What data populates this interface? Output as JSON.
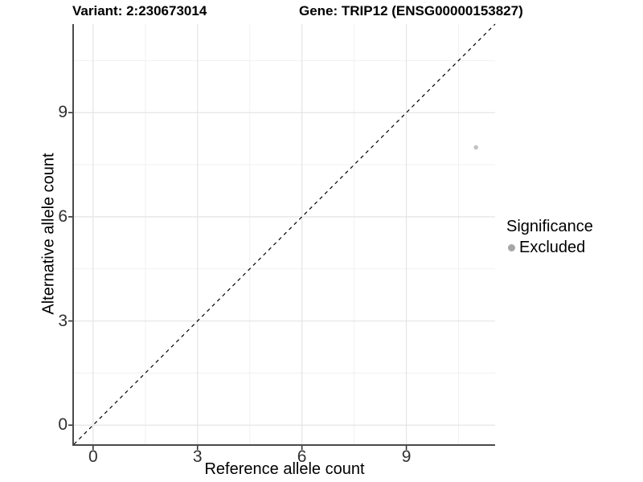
{
  "chart_data": {
    "type": "scatter",
    "title_left": "Variant: 2:230673014",
    "title_right": "Gene: TRIP12 (ENSG00000153827)",
    "xlabel": "Reference allele count",
    "ylabel": "Alternative allele count",
    "xlim": [
      -0.55,
      11.55
    ],
    "ylim": [
      -0.55,
      11.55
    ],
    "x_ticks": [
      0,
      3,
      6,
      9
    ],
    "y_ticks": [
      0,
      3,
      6,
      9
    ],
    "x_minor_ticks": [
      1.5,
      4.5,
      7.5,
      10.5
    ],
    "y_minor_ticks": [
      1.5,
      4.5,
      7.5,
      10.5
    ],
    "grid": true,
    "legend_position": "right",
    "reference_line": {
      "type": "identity",
      "style": "dashed",
      "color": "#000000"
    },
    "series": [
      {
        "name": "Excluded",
        "color": "#c3c3c3",
        "points": [
          {
            "x": 11,
            "y": 8
          }
        ]
      }
    ],
    "legend": {
      "title": "Significance",
      "items": [
        {
          "label": "Excluded",
          "color": "#a6a6a6"
        }
      ]
    }
  },
  "colors": {
    "axis_line": "#4a4a4a",
    "tick_mark": "#333333",
    "grid_major": "#e4e4e4",
    "grid_minor": "#f1f1f1",
    "tick_text": "#303030"
  }
}
